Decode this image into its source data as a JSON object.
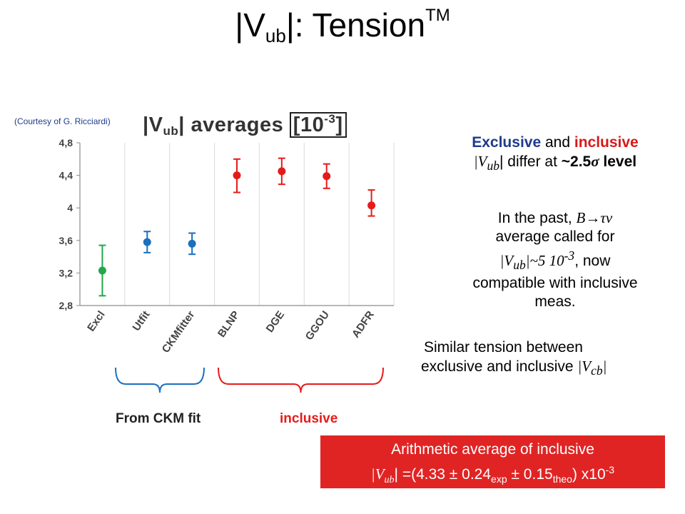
{
  "title": {
    "main": "|V",
    "sub": "ub",
    "rest": "|: Tension",
    "sup": "TM"
  },
  "courtesy": "(Courtesy of G. Ricciardi)",
  "chart_heading": {
    "v": "|V",
    "sub": "ub",
    "bar": "|",
    "averages": "averages",
    "unit": "10",
    "unit_sup": "-3"
  },
  "chart_data": {
    "type": "scatter",
    "title": "|Vub| averages [10-3]",
    "categories": [
      "Excl",
      "Utfit",
      "CKMfitter",
      "BLNP",
      "DGE",
      "GGOU",
      "ADFR"
    ],
    "values": [
      3.23,
      3.58,
      3.56,
      4.4,
      4.45,
      4.39,
      4.03
    ],
    "err_low": [
      0.31,
      0.13,
      0.13,
      0.21,
      0.16,
      0.15,
      0.13
    ],
    "err_high": [
      0.31,
      0.13,
      0.13,
      0.2,
      0.16,
      0.15,
      0.19
    ],
    "colors": [
      "#21a84b",
      "#1b6fbd",
      "#1b6fbd",
      "#e51b1b",
      "#e51b1b",
      "#e51b1b",
      "#e51b1b"
    ],
    "y_ticks": [
      "4,8",
      "4,4",
      "4",
      "3,6",
      "3,2",
      "2,8"
    ],
    "ylim": [
      2.8,
      4.8
    ],
    "grid": "vertical",
    "groups": [
      {
        "label": "From CKM fit",
        "color": "#1b6fbd",
        "text_color": "#222222"
      },
      {
        "label": "inclusive",
        "color": "#e51b1b",
        "text_color": "#e51b1b"
      }
    ]
  },
  "statement1": {
    "exclusive": "Exclusive",
    "and": " and ",
    "inclusive": "inclusive",
    "v": "|V",
    "sub": "ub",
    "differ": "| differ at ",
    "level": "~2.5",
    "sigma": "σ",
    "level_word": " level"
  },
  "statement2": {
    "line1_pre": "In the past, ",
    "decay": "B→τν",
    "line2": "average called for",
    "v": "|V",
    "sub": "ub",
    "approx": "|~5 10",
    "sup": "-3",
    "now": ", now",
    "line4": "compatible with inclusive",
    "line5": "meas."
  },
  "statement3": {
    "line1": "Similar tension between",
    "line2_pre": "exclusive and inclusive ",
    "v": "|V",
    "sub": "cb",
    "bar": "|"
  },
  "result": {
    "line1": "Arithmetic average of inclusive",
    "v": "|V",
    "sub": "ub",
    "eq": "| =(4.33 ± 0.24",
    "exp": "exp",
    "pm": " ± 0.15",
    "theo": "theo",
    "close": ") x10",
    "sup": "-3"
  }
}
